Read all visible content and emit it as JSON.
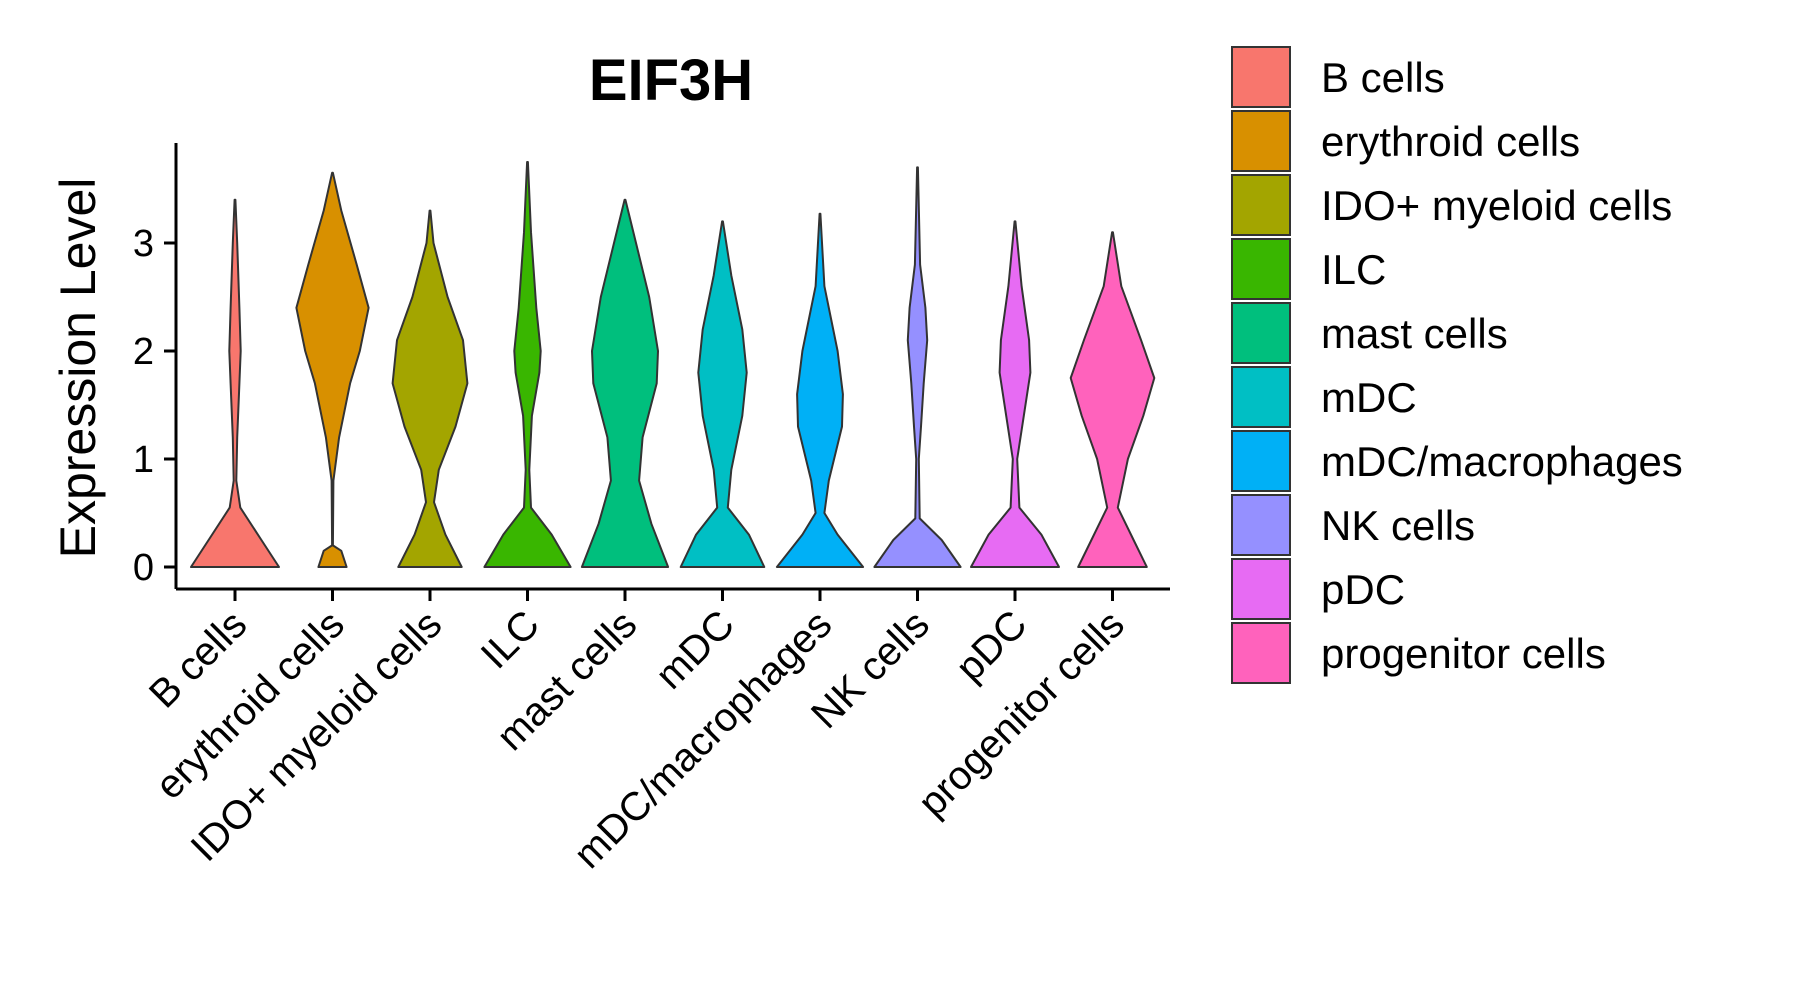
{
  "chart_data": {
    "type": "violin",
    "title": "EIF3H",
    "xlabel": "",
    "ylabel": "Expression Level",
    "ylim": [
      0,
      3.9
    ],
    "yticks": [
      0,
      1,
      2,
      3
    ],
    "legend_position": "right",
    "categories": [
      "B cells",
      "erythroid cells",
      "IDO+ myeloid cells",
      "ILC",
      "mast cells",
      "mDC",
      "mDC/macrophages",
      "NK cells",
      "pDC",
      "progenitor cells"
    ],
    "colors": [
      "#F8766D",
      "#D89000",
      "#A3A500",
      "#39B600",
      "#00BF7D",
      "#00BFC4",
      "#00B0F6",
      "#9590FF",
      "#E76BF3",
      "#FF62BC"
    ],
    "series": [
      {
        "name": "B cells",
        "max": 3.4,
        "profile": [
          [
            0,
            1.0
          ],
          [
            0.25,
            0.6
          ],
          [
            0.55,
            0.12
          ],
          [
            0.8,
            0.03
          ],
          [
            1.2,
            0.05
          ],
          [
            1.7,
            0.1
          ],
          [
            2.0,
            0.13
          ],
          [
            2.4,
            0.1
          ],
          [
            3.0,
            0.05
          ],
          [
            3.4,
            0.01
          ]
        ]
      },
      {
        "name": "erythroid cells",
        "max": 3.65,
        "profile": [
          [
            0,
            0.32
          ],
          [
            0.15,
            0.2
          ],
          [
            0.2,
            0.01
          ],
          [
            0.8,
            0.02
          ],
          [
            1.2,
            0.15
          ],
          [
            1.7,
            0.4
          ],
          [
            2.0,
            0.62
          ],
          [
            2.4,
            0.82
          ],
          [
            2.8,
            0.55
          ],
          [
            3.3,
            0.2
          ],
          [
            3.65,
            0.01
          ]
        ]
      },
      {
        "name": "IDO+ myeloid cells",
        "max": 3.3,
        "profile": [
          [
            0,
            0.72
          ],
          [
            0.3,
            0.35
          ],
          [
            0.6,
            0.09
          ],
          [
            0.9,
            0.2
          ],
          [
            1.3,
            0.58
          ],
          [
            1.7,
            0.85
          ],
          [
            2.1,
            0.75
          ],
          [
            2.5,
            0.4
          ],
          [
            3.0,
            0.08
          ],
          [
            3.3,
            0.01
          ]
        ]
      },
      {
        "name": "ILC",
        "max": 3.75,
        "profile": [
          [
            0,
            0.98
          ],
          [
            0.3,
            0.55
          ],
          [
            0.55,
            0.08
          ],
          [
            0.9,
            0.04
          ],
          [
            1.4,
            0.1
          ],
          [
            1.8,
            0.27
          ],
          [
            2.0,
            0.3
          ],
          [
            2.4,
            0.2
          ],
          [
            3.1,
            0.08
          ],
          [
            3.75,
            0.01
          ]
        ]
      },
      {
        "name": "mast cells",
        "max": 3.4,
        "profile": [
          [
            0,
            0.98
          ],
          [
            0.4,
            0.6
          ],
          [
            0.8,
            0.32
          ],
          [
            1.2,
            0.4
          ],
          [
            1.7,
            0.72
          ],
          [
            2.0,
            0.75
          ],
          [
            2.5,
            0.55
          ],
          [
            3.0,
            0.25
          ],
          [
            3.4,
            0.01
          ]
        ]
      },
      {
        "name": "mDC",
        "max": 3.2,
        "profile": [
          [
            0,
            0.95
          ],
          [
            0.3,
            0.6
          ],
          [
            0.55,
            0.12
          ],
          [
            0.9,
            0.2
          ],
          [
            1.4,
            0.45
          ],
          [
            1.8,
            0.55
          ],
          [
            2.2,
            0.45
          ],
          [
            2.7,
            0.2
          ],
          [
            3.2,
            0.01
          ]
        ]
      },
      {
        "name": "mDC/macrophages",
        "max": 3.27,
        "profile": [
          [
            0,
            0.98
          ],
          [
            0.3,
            0.4
          ],
          [
            0.5,
            0.1
          ],
          [
            0.8,
            0.2
          ],
          [
            1.3,
            0.5
          ],
          [
            1.6,
            0.52
          ],
          [
            2.0,
            0.4
          ],
          [
            2.6,
            0.1
          ],
          [
            3.27,
            0.01
          ]
        ]
      },
      {
        "name": "NK cells",
        "max": 3.7,
        "profile": [
          [
            0,
            0.98
          ],
          [
            0.25,
            0.55
          ],
          [
            0.45,
            0.05
          ],
          [
            1.0,
            0.03
          ],
          [
            1.3,
            0.08
          ],
          [
            1.7,
            0.14
          ],
          [
            2.1,
            0.22
          ],
          [
            2.4,
            0.18
          ],
          [
            2.8,
            0.06
          ],
          [
            3.7,
            0.01
          ]
        ]
      },
      {
        "name": "pDC",
        "max": 3.2,
        "profile": [
          [
            0,
            1.0
          ],
          [
            0.3,
            0.6
          ],
          [
            0.55,
            0.1
          ],
          [
            1.0,
            0.05
          ],
          [
            1.4,
            0.2
          ],
          [
            1.8,
            0.35
          ],
          [
            2.1,
            0.32
          ],
          [
            2.6,
            0.15
          ],
          [
            3.2,
            0.01
          ]
        ]
      },
      {
        "name": "progenitor cells",
        "max": 3.1,
        "profile": [
          [
            0,
            0.78
          ],
          [
            0.25,
            0.48
          ],
          [
            0.55,
            0.12
          ],
          [
            1.0,
            0.35
          ],
          [
            1.4,
            0.7
          ],
          [
            1.75,
            0.95
          ],
          [
            2.1,
            0.65
          ],
          [
            2.6,
            0.2
          ],
          [
            3.1,
            0.01
          ]
        ]
      }
    ]
  }
}
